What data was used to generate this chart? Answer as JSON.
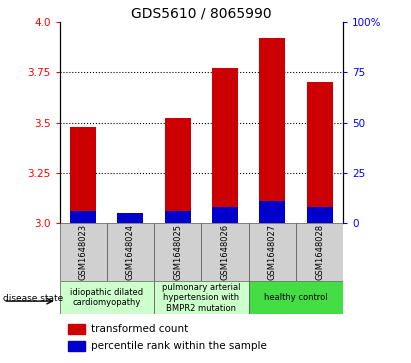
{
  "title": "GDS5610 / 8065990",
  "samples": [
    "GSM1648023",
    "GSM1648024",
    "GSM1648025",
    "GSM1648026",
    "GSM1648027",
    "GSM1648028"
  ],
  "red_values": [
    3.48,
    3.03,
    3.52,
    3.77,
    3.92,
    3.7
  ],
  "blue_values": [
    3.06,
    3.05,
    3.06,
    3.08,
    3.11,
    3.08
  ],
  "ymin": 3.0,
  "ymax": 4.0,
  "yticks_left": [
    3.0,
    3.25,
    3.5,
    3.75,
    4.0
  ],
  "yticks_right": [
    0,
    25,
    50,
    75,
    100
  ],
  "bar_width": 0.55,
  "red_color": "#cc0000",
  "blue_color": "#0000cc",
  "disease_groups": [
    {
      "label": "idiopathic dilated\ncardiomyopathy",
      "start": 0,
      "end": 1,
      "color": "#ccffcc"
    },
    {
      "label": "pulmonary arterial\nhypertension with\nBMPR2 mutation",
      "start": 2,
      "end": 3,
      "color": "#ccffcc"
    },
    {
      "label": "healthy control",
      "start": 4,
      "end": 5,
      "color": "#44dd44"
    }
  ],
  "legend_red": "transformed count",
  "legend_blue": "percentile rank within the sample",
  "disease_state_label": "disease state",
  "title_fontsize": 10,
  "tick_fontsize": 7.5,
  "sample_fontsize": 6.0,
  "disease_fontsize": 6.0,
  "legend_fontsize": 7.5
}
